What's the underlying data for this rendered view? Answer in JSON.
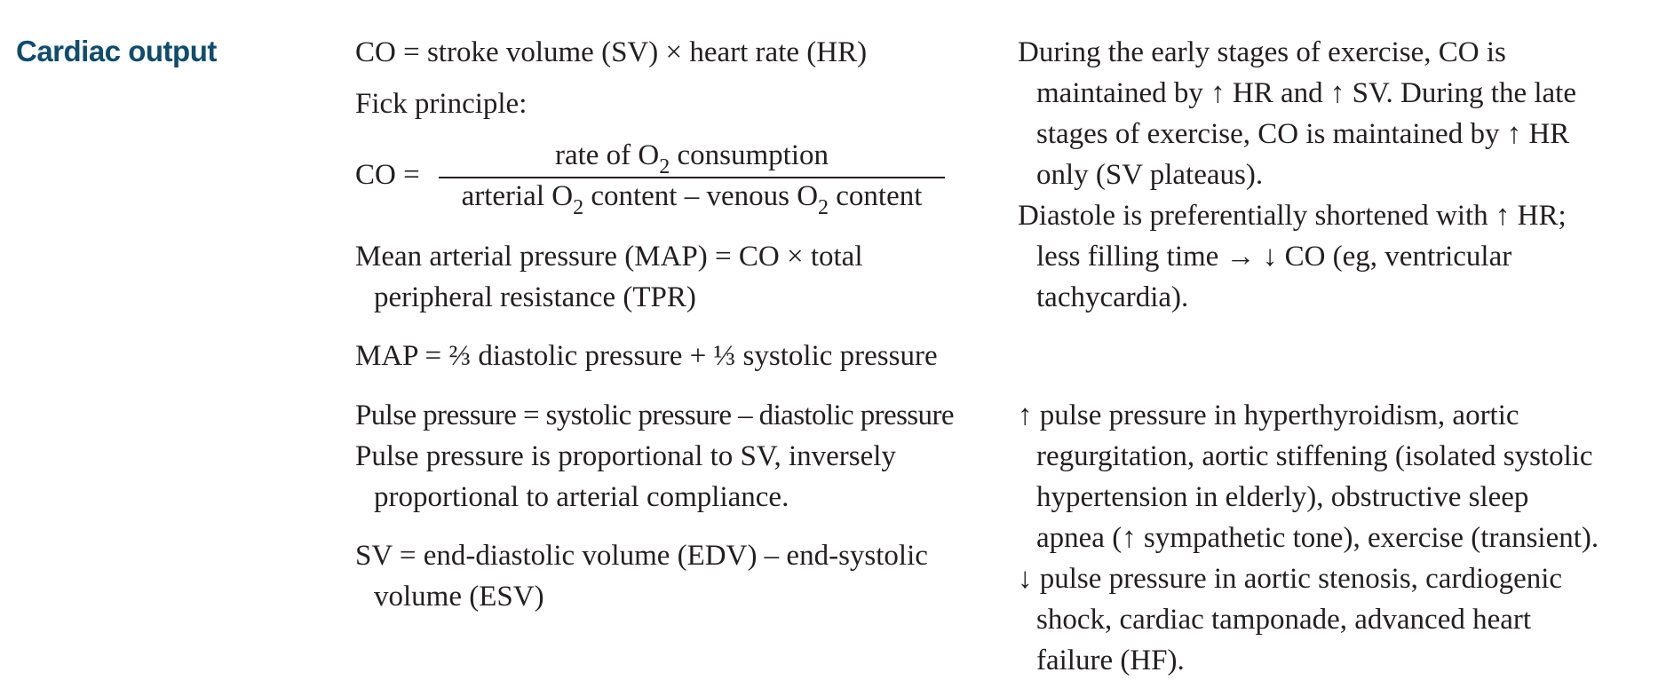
{
  "heading": "Cardiac output",
  "left": {
    "co_formula": "CO = stroke volume (SV) × heart rate (HR)",
    "fick_label": "Fick principle:",
    "fick": {
      "lhs": "CO =",
      "num_pre": "rate of O",
      "num_sub": "2",
      "num_post": " consumption",
      "den_pre": "arterial O",
      "den_sub1": "2",
      "den_mid": " content – venous O",
      "den_sub2": "2",
      "den_post": " content"
    },
    "map_line1": "Mean arterial pressure (MAP) = CO × total",
    "map_line2": "peripheral resistance (TPR)",
    "map_fraction": "MAP = ⅔ diastolic pressure + ⅓ systolic pressure",
    "pp_formula": "Pulse pressure = systolic pressure – diastolic pressure",
    "pp_prop_line1": "Pulse pressure is proportional to SV, inversely",
    "pp_prop_line2": "proportional to arterial compliance.",
    "sv_line1": "SV = end-diastolic volume (EDV) – end-systolic",
    "sv_line2": "volume (ESV)"
  },
  "right": {
    "exercise_line1": "During the early stages of exercise, CO is",
    "exercise_line2": "maintained by ↑ HR and ↑ SV. During the late",
    "exercise_line3": "stages of exercise, CO is maintained by ↑ HR",
    "exercise_line4": "only (SV plateaus).",
    "diastole_line1": "Diastole is preferentially shortened with ↑ HR;",
    "diastole_line2": "less filling time → ↓ CO (eg, ventricular",
    "diastole_line3": "tachycardia).",
    "pp_up_line1": "↑ pulse pressure in hyperthyroidism, aortic",
    "pp_up_line2": "regurgitation, aortic stiffening (isolated systolic",
    "pp_up_line3": "hypertension in elderly), obstructive sleep",
    "pp_up_line4": "apnea (↑ sympathetic tone), exercise (transient).",
    "pp_down_line1": "↓ pulse pressure in aortic stenosis, cardiogenic",
    "pp_down_line2": "shock, cardiac tamponade, advanced heart",
    "pp_down_line3": "failure (HF)."
  }
}
